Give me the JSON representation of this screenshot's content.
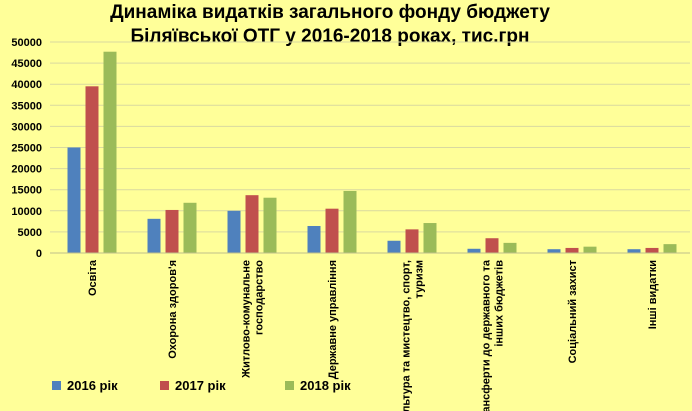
{
  "chart_data": {
    "type": "bar",
    "title": "Динаміка видатків загального фонду бюджету Біляївської ОТГ у 2016-2018 роках, тис.грн",
    "title_lines": [
      "Динаміка видатків загального фонду бюджету",
      "Біляївської ОТГ у 2016-2018 роках, тис.грн"
    ],
    "xlabel": "",
    "ylabel": "",
    "ylim": [
      0,
      50000
    ],
    "yticks": [
      0,
      5000,
      10000,
      15000,
      20000,
      25000,
      30000,
      35000,
      40000,
      45000,
      50000
    ],
    "grid": true,
    "legend_position": "bottom",
    "categories": [
      "Освіта",
      "Охорона здоров'я",
      "Житлово-комунальне господарство",
      "Державне управління",
      "Культура та мистецтво, спорт, туризм",
      "Трансферти до державного та інших бюджетів",
      "Соціальний захист",
      "Інші видатки"
    ],
    "category_label_lines": [
      [
        "Освіта"
      ],
      [
        "Охорона здоров'я"
      ],
      [
        "Житлово-комунальне",
        "господарство"
      ],
      [
        "Державне управління"
      ],
      [
        "Культура та мистецтво, спорт,",
        "туризм"
      ],
      [
        "Трансферти до державного та",
        "інших бюджетів"
      ],
      [
        "Соціальний захист"
      ],
      [
        "Інші видатки"
      ]
    ],
    "series": [
      {
        "name": "2016 рік",
        "color": "#4f81bd",
        "values": [
          25000,
          8100,
          10000,
          6400,
          2900,
          1000,
          900,
          900
        ]
      },
      {
        "name": "2017 рік",
        "color": "#c0504d",
        "values": [
          39500,
          10200,
          13700,
          10500,
          5600,
          3500,
          1200,
          1200
        ]
      },
      {
        "name": "2018 рік",
        "color": "#9bbb59",
        "values": [
          47700,
          11900,
          13100,
          14700,
          7100,
          2400,
          1500,
          2100
        ]
      }
    ]
  }
}
